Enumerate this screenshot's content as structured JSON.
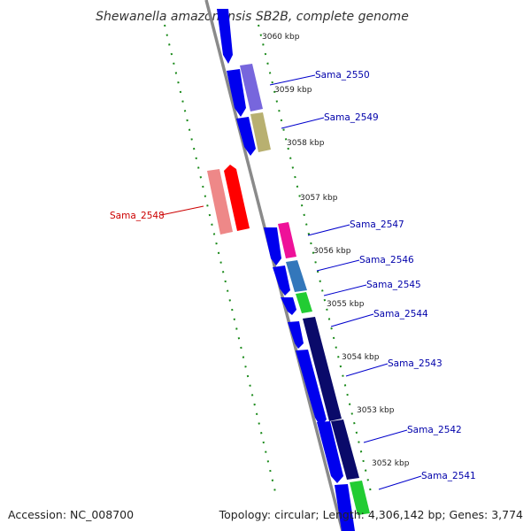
{
  "title": "Shewanella amazonensis SB2B, complete genome",
  "footer": {
    "accession": "Accession: NC_008700",
    "summary": "Topology: circular; Length: 4,306,142 bp; Genes: 3,774"
  },
  "ruler_labels": [
    "3060 kbp",
    "3059 kbp",
    "3058 kbp",
    "3057 kbp",
    "3056 kbp",
    "3055 kbp",
    "3054 kbp",
    "3053 kbp",
    "3052 kbp"
  ],
  "gene_labels": [
    {
      "name": "Sama_2550",
      "color": "#0000aa"
    },
    {
      "name": "Sama_2549",
      "color": "#0000aa"
    },
    {
      "name": "Sama_2548",
      "color": "#cc0000"
    },
    {
      "name": "Sama_2547",
      "color": "#0000aa"
    },
    {
      "name": "Sama_2546",
      "color": "#0000aa"
    },
    {
      "name": "Sama_2545",
      "color": "#0000aa"
    },
    {
      "name": "Sama_2544",
      "color": "#0000aa"
    },
    {
      "name": "Sama_2543",
      "color": "#0000aa"
    },
    {
      "name": "Sama_2542",
      "color": "#0000aa"
    },
    {
      "name": "Sama_2541",
      "color": "#0000aa"
    }
  ],
  "colors": {
    "backbone": "#888888",
    "tick_dots": "#1a8a1a",
    "cds_forward": "#0000ee",
    "cds_reverse": "#ff0000"
  }
}
